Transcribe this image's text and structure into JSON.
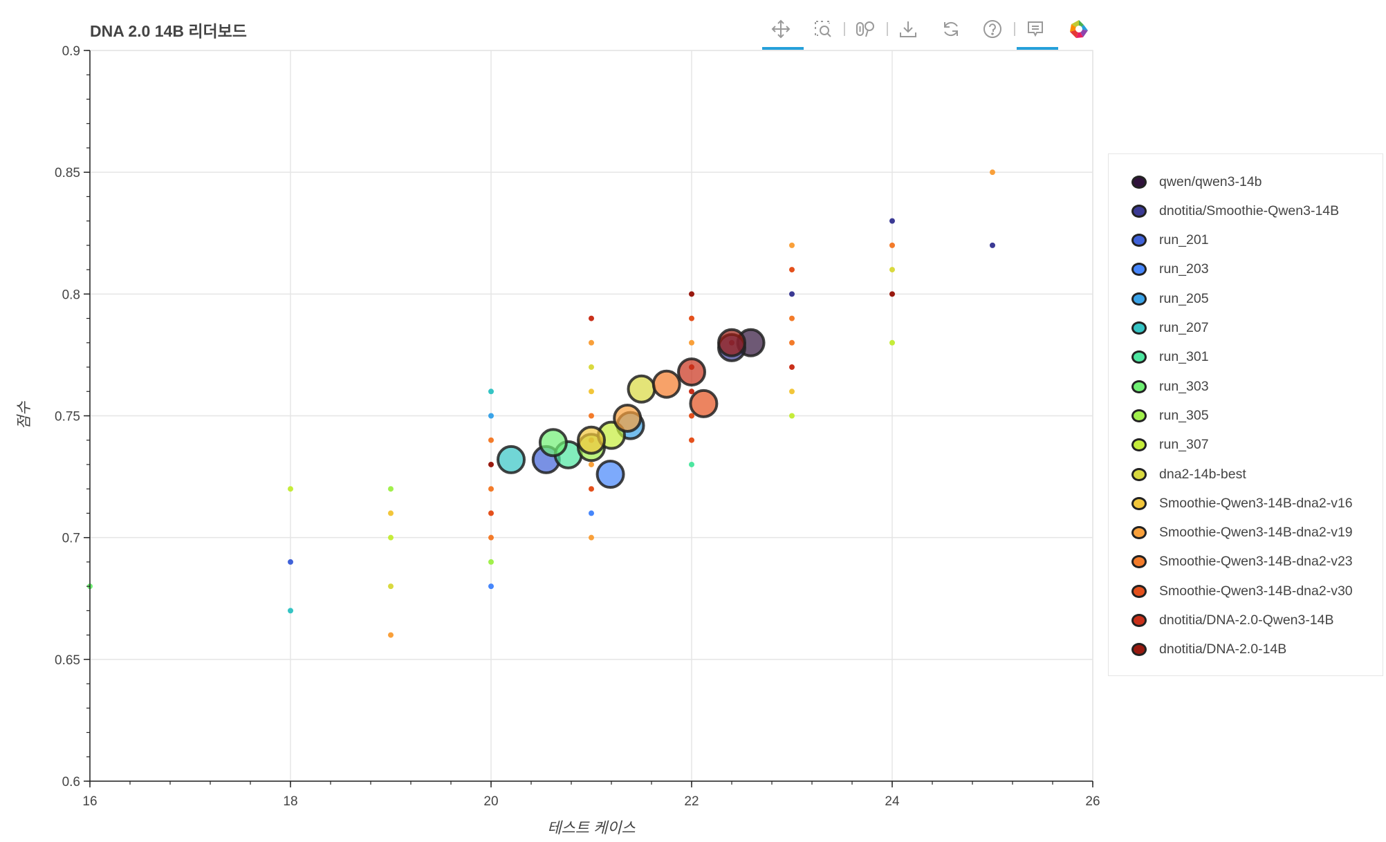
{
  "toolbar": {
    "tools": [
      "pan-icon",
      "box-zoom-icon",
      "wheel-zoom-icon",
      "save-icon",
      "reset-icon",
      "help-icon",
      "hover-icon",
      "bokeh-logo-icon"
    ],
    "active": [
      "pan-icon",
      "hover-icon"
    ],
    "accent": "#26a0da"
  },
  "chart_data": {
    "type": "scatter",
    "title": "DNA 2.0 14B 리더보드",
    "xlabel": "테스트 케이스",
    "ylabel": "점수",
    "xlim": [
      16,
      26
    ],
    "ylim": [
      0.6,
      0.9
    ],
    "xticks": [
      "16",
      "18",
      "20",
      "22",
      "24",
      "26"
    ],
    "yticks": [
      "0.6",
      "0.65",
      "0.7",
      "0.75",
      "0.8",
      "0.85",
      "0.9"
    ],
    "grid": true,
    "legend_position": "right",
    "series": [
      {
        "name": "qwen/qwen3-14b",
        "color": "#30123b",
        "mean": [
          22.59,
          0.78
        ]
      },
      {
        "name": "dnotitia/Smoothie-Qwen3-14B",
        "color": "#3b3a94",
        "mean": [
          22.4,
          0.778
        ]
      },
      {
        "name": "run_201",
        "color": "#4062d8",
        "mean": [
          20.55,
          0.732
        ]
      },
      {
        "name": "run_203",
        "color": "#4686fb",
        "mean": [
          21.19,
          0.726
        ]
      },
      {
        "name": "run_205",
        "color": "#3aa3e8",
        "mean": [
          21.39,
          0.746
        ]
      },
      {
        "name": "run_207",
        "color": "#35c4c4",
        "mean": [
          20.2,
          0.732
        ]
      },
      {
        "name": "run_301",
        "color": "#4de6a0",
        "mean": [
          20.77,
          0.734
        ]
      },
      {
        "name": "run_303",
        "color": "#6ff073",
        "mean": [
          20.62,
          0.739
        ]
      },
      {
        "name": "run_305",
        "color": "#a1f04c",
        "mean": [
          21.0,
          0.737
        ]
      },
      {
        "name": "run_307",
        "color": "#c5ec3a",
        "mean": [
          21.2,
          0.742
        ]
      },
      {
        "name": "dna2-14b-best",
        "color": "#d9d93f",
        "mean": [
          21.5,
          0.761
        ]
      },
      {
        "name": "Smoothie-Qwen3-14B-dna2-v16",
        "color": "#f2c63a",
        "mean": [
          21.0,
          0.74
        ]
      },
      {
        "name": "Smoothie-Qwen3-14B-dna2-v19",
        "color": "#f9a03a",
        "mean": [
          21.36,
          0.749
        ]
      },
      {
        "name": "Smoothie-Qwen3-14B-dna2-v23",
        "color": "#f37b2a",
        "mean": [
          21.75,
          0.763
        ]
      },
      {
        "name": "Smoothie-Qwen3-14B-dna2-v30",
        "color": "#e4501c",
        "mean": [
          22.12,
          0.755
        ]
      },
      {
        "name": "dnotitia/DNA-2.0-Qwen3-14B",
        "color": "#c9301a",
        "mean": [
          22.0,
          0.768
        ]
      },
      {
        "name": "dnotitia/DNA-2.0-14B",
        "color": "#98190f",
        "mean": [
          22.4,
          0.78
        ]
      }
    ],
    "points": [
      [
        16,
        0.68,
        7
      ],
      [
        18,
        0.72,
        9
      ],
      [
        18,
        0.69,
        2
      ],
      [
        18,
        0.67,
        5
      ],
      [
        19,
        0.72,
        8
      ],
      [
        19,
        0.71,
        11
      ],
      [
        19,
        0.7,
        9
      ],
      [
        19,
        0.68,
        10
      ],
      [
        19,
        0.66,
        12
      ],
      [
        20,
        0.76,
        5
      ],
      [
        20,
        0.75,
        4
      ],
      [
        20,
        0.74,
        13
      ],
      [
        20,
        0.73,
        16
      ],
      [
        20,
        0.72,
        13
      ],
      [
        20,
        0.71,
        14
      ],
      [
        20,
        0.7,
        13
      ],
      [
        20,
        0.69,
        8
      ],
      [
        20,
        0.68,
        3
      ],
      [
        21,
        0.79,
        15
      ],
      [
        21,
        0.78,
        12
      ],
      [
        21,
        0.77,
        10
      ],
      [
        21,
        0.76,
        11
      ],
      [
        21,
        0.75,
        13
      ],
      [
        21,
        0.74,
        15
      ],
      [
        21,
        0.73,
        12
      ],
      [
        21,
        0.72,
        14
      ],
      [
        21,
        0.71,
        3
      ],
      [
        21,
        0.7,
        12
      ],
      [
        22,
        0.8,
        16
      ],
      [
        22,
        0.79,
        14
      ],
      [
        22,
        0.78,
        12
      ],
      [
        22,
        0.77,
        15
      ],
      [
        22,
        0.76,
        15
      ],
      [
        22,
        0.75,
        14
      ],
      [
        22,
        0.74,
        14
      ],
      [
        22,
        0.73,
        6
      ],
      [
        22.4,
        0.78,
        15
      ],
      [
        23,
        0.82,
        12
      ],
      [
        23,
        0.81,
        14
      ],
      [
        23,
        0.8,
        1
      ],
      [
        23,
        0.79,
        13
      ],
      [
        23,
        0.78,
        13
      ],
      [
        23,
        0.77,
        15
      ],
      [
        23,
        0.76,
        11
      ],
      [
        23,
        0.75,
        9
      ],
      [
        24,
        0.83,
        1
      ],
      [
        24,
        0.82,
        13
      ],
      [
        24,
        0.81,
        10
      ],
      [
        24,
        0.8,
        16
      ],
      [
        24,
        0.78,
        9
      ],
      [
        25,
        0.85,
        12
      ],
      [
        25,
        0.82,
        1
      ]
    ]
  }
}
